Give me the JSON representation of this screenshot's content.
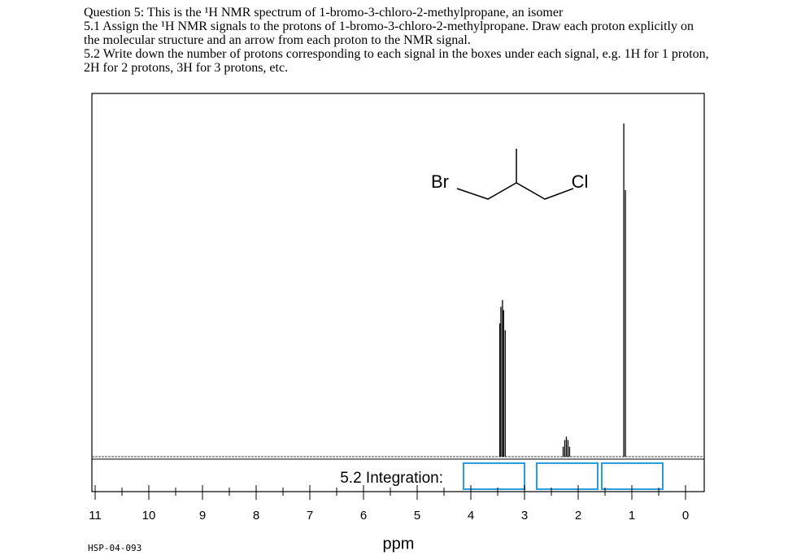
{
  "question": {
    "lines": [
      "Question 5: This is the ¹H NMR spectrum of 1-bromo-3-chloro-2-methylpropane, an isomer",
      "5.1 Assign the ¹H NMR signals to the protons of 1-bromo-3-chloro-2-methylpropane. Draw each proton explicitly on the molecular structure and an arrow from each proton to the NMR signal.",
      "5.2 Write down the number of protons corresponding to each signal in the boxes under each signal, e.g. 1H for 1 proton, 2H for 2 protons, 3H for 3 protons, etc."
    ]
  },
  "chart_data": {
    "type": "nmr",
    "x_label": "ppm",
    "code": "HSP-04-093",
    "integration_label": "5.2 Integration:",
    "molecule": {
      "left": "Br",
      "right": "Cl"
    },
    "xlim": [
      11,
      0
    ],
    "xticks": [
      11,
      10,
      9,
      8,
      7,
      6,
      5,
      4,
      3,
      2,
      1,
      0
    ],
    "xminorticks": [
      10.5,
      9.5,
      8.5,
      7.5,
      6.5,
      5.5,
      4.5,
      3.5,
      2.5,
      1.5,
      0.5
    ],
    "ylim": [
      0,
      100
    ],
    "color": "#000000",
    "x": [
      3.46,
      3.44,
      3.41,
      3.39,
      3.36,
      2.28,
      2.25,
      2.22,
      2.19,
      2.16,
      1.15,
      1.12
    ],
    "values": [
      40,
      45,
      47,
      44,
      38,
      3,
      5,
      6,
      5,
      3,
      100,
      80
    ]
  }
}
